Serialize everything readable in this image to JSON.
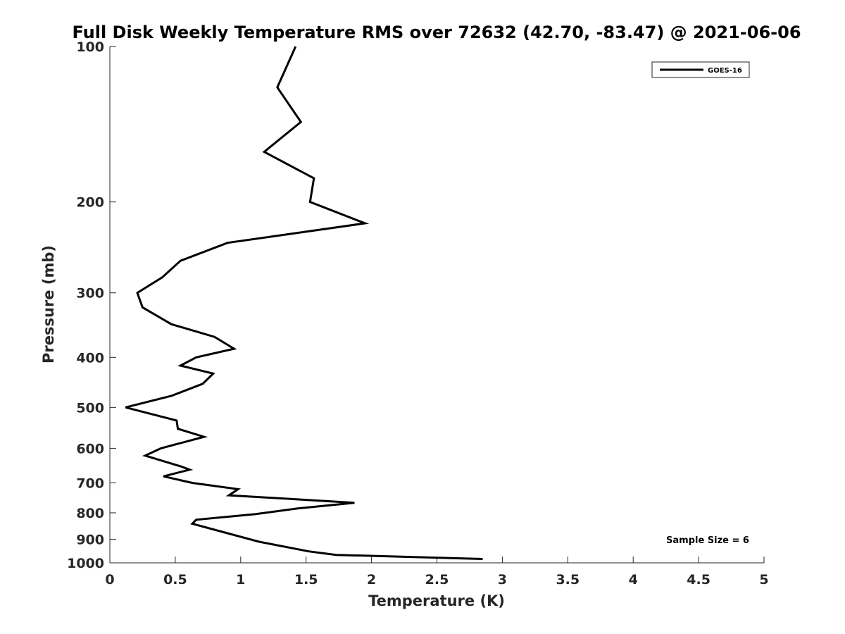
{
  "chart_data": {
    "type": "line",
    "title": "Full Disk Weekly Temperature RMS over 72632 (42.70, -83.47) @ 2021-06-06",
    "xlabel": "Temperature (K)",
    "ylabel": "Pressure (mb)",
    "xlim": [
      0,
      5
    ],
    "ylim": [
      100,
      1000
    ],
    "y_scale": "log",
    "y_reversed": true,
    "x_ticks": [
      "0",
      "0.5",
      "1",
      "1.5",
      "2",
      "2.5",
      "3",
      "3.5",
      "4",
      "4.5",
      "5"
    ],
    "y_ticks": [
      "100",
      "200",
      "300",
      "400",
      "500",
      "600",
      "700",
      "800",
      "900",
      "1000"
    ],
    "grid": false,
    "legend_position": "top-right",
    "annotation": "Sample Size = 6",
    "series": [
      {
        "name": "GOES-16",
        "color": "#000000",
        "points": [
          [
            1.42,
            100
          ],
          [
            1.28,
            120
          ],
          [
            1.46,
            140
          ],
          [
            1.18,
            160
          ],
          [
            1.56,
            180
          ],
          [
            1.53,
            200
          ],
          [
            1.95,
            220
          ],
          [
            0.9,
            240
          ],
          [
            0.54,
            260
          ],
          [
            0.4,
            280
          ],
          [
            0.21,
            300
          ],
          [
            0.25,
            320
          ],
          [
            0.47,
            345
          ],
          [
            0.8,
            365
          ],
          [
            0.95,
            385
          ],
          [
            0.66,
            400
          ],
          [
            0.54,
            415
          ],
          [
            0.79,
            430
          ],
          [
            0.71,
            450
          ],
          [
            0.47,
            475
          ],
          [
            0.12,
            500
          ],
          [
            0.51,
            530
          ],
          [
            0.52,
            550
          ],
          [
            0.72,
            570
          ],
          [
            0.39,
            600
          ],
          [
            0.27,
            620
          ],
          [
            0.54,
            650
          ],
          [
            0.61,
            660
          ],
          [
            0.41,
            680
          ],
          [
            0.63,
            700
          ],
          [
            0.98,
            720
          ],
          [
            0.91,
            740
          ],
          [
            1.87,
            765
          ],
          [
            1.43,
            785
          ],
          [
            1.11,
            805
          ],
          [
            0.66,
            825
          ],
          [
            0.63,
            840
          ],
          [
            0.89,
            875
          ],
          [
            1.14,
            910
          ],
          [
            1.52,
            950
          ],
          [
            1.73,
            965
          ],
          [
            2.85,
            983
          ]
        ]
      }
    ]
  }
}
